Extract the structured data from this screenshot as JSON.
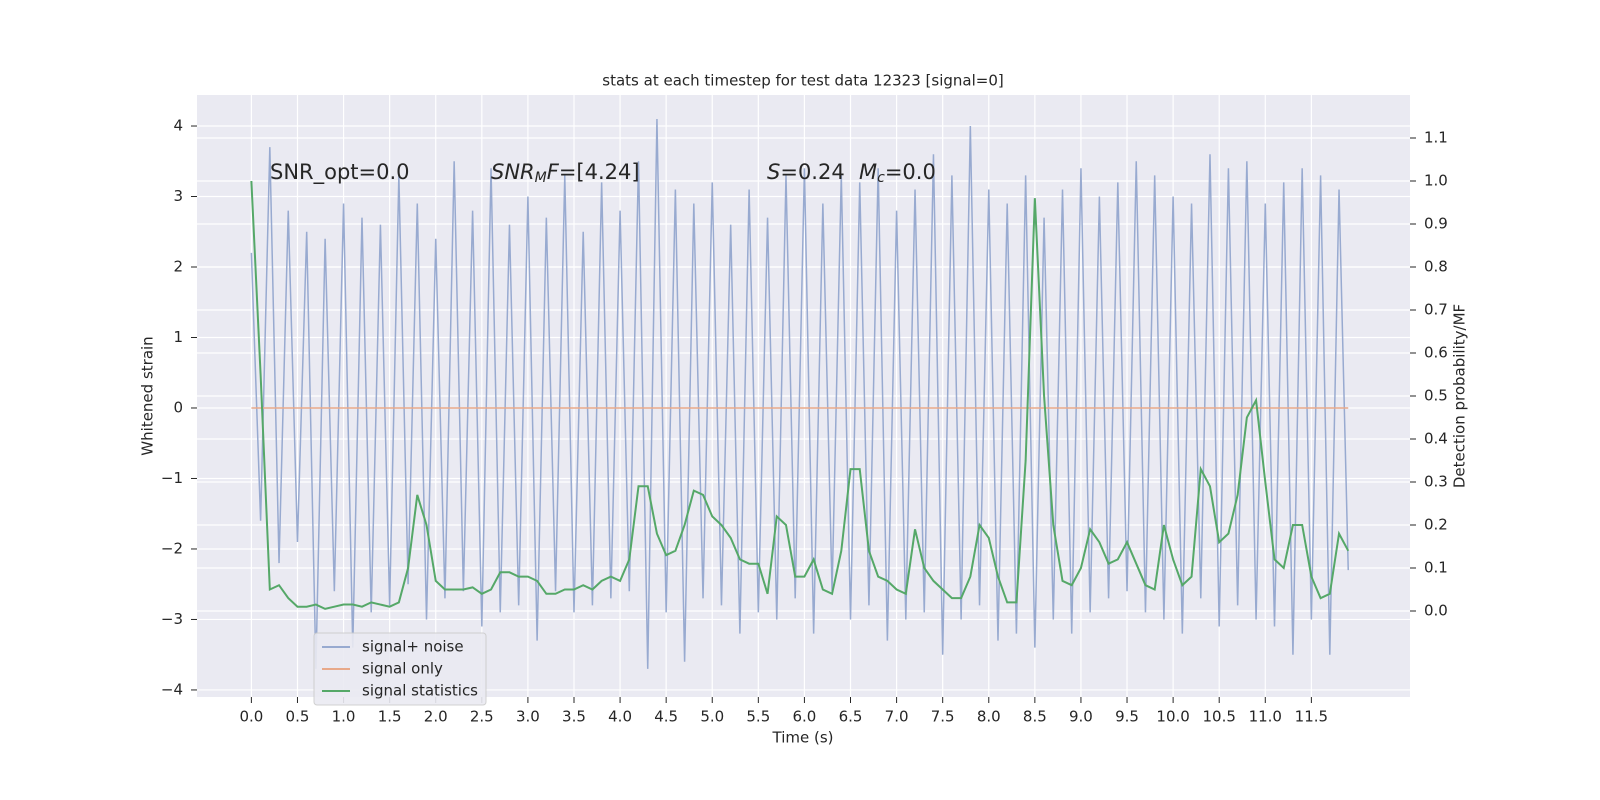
{
  "chart_data": {
    "type": "line",
    "title": "stats at each timestep for test data 12323 [signal=0]",
    "xlabel": "Time (s)",
    "ylabel": "Whitened strain",
    "y2label": "Detection probability/MF",
    "grid": true,
    "background": "#eaeaf2",
    "legend_loc": "lower left",
    "xlim": [
      -0.59,
      12.57
    ],
    "ylim": [
      -4.1,
      4.44
    ],
    "y2lim": [
      -0.2,
      1.2
    ],
    "xticks": [
      {
        "value": 0,
        "label": "0.0"
      },
      0.5,
      {
        "value": 1,
        "label": "1.0"
      },
      1.5,
      {
        "value": 2,
        "label": "2.0"
      },
      2.5,
      {
        "value": 3,
        "label": "3.0"
      },
      3.5,
      {
        "value": 4,
        "label": "4.0"
      },
      4.5,
      {
        "value": 5,
        "label": "5.0"
      },
      5.5,
      {
        "value": 6,
        "label": "6.0"
      },
      6.5,
      {
        "value": 7,
        "label": "7.0"
      },
      7.5,
      {
        "value": 8,
        "label": "8.0"
      },
      8.5,
      {
        "value": 9,
        "label": "9.0"
      },
      9.5,
      {
        "value": 10,
        "label": "10.0"
      },
      10.5,
      {
        "value": 11,
        "label": "11.0"
      },
      11.5
    ],
    "yticks": [
      {
        "value": -4,
        "label": "−4"
      },
      {
        "value": -3,
        "label": "−3"
      },
      {
        "value": -2,
        "label": "−2"
      },
      {
        "value": -1,
        "label": "−1"
      },
      0,
      1,
      2,
      3,
      4
    ],
    "y2ticks": [
      {
        "value": 0,
        "label": "0.0"
      },
      0.1,
      0.2,
      0.3,
      0.4,
      0.5,
      0.6,
      0.7,
      0.8,
      0.9,
      {
        "value": 1,
        "label": "1.0"
      },
      1.1
    ],
    "annotations": [
      [
        {
          "text": "SNR_opt=0.0"
        }
      ],
      [
        {
          "text": "SNR",
          "italic": true
        },
        {
          "text": "M",
          "italic": true,
          "sub": true
        },
        {
          "text": "F",
          "italic": true
        },
        {
          "text": "=[4.24]"
        }
      ],
      [
        {
          "text": "S",
          "italic": true
        },
        {
          "text": "=0.24"
        }
      ],
      [
        {
          "text": "M",
          "italic": true
        },
        {
          "text": "c",
          "italic": true,
          "sub": true
        },
        {
          "text": "=0.0"
        }
      ]
    ],
    "x": [
      0.0,
      0.1,
      0.2,
      0.3,
      0.4,
      0.5,
      0.6,
      0.7,
      0.8,
      0.9,
      1.0,
      1.1,
      1.2,
      1.3,
      1.4,
      1.5,
      1.6,
      1.7,
      1.8,
      1.9,
      2.0,
      2.1,
      2.2,
      2.3,
      2.4,
      2.5,
      2.6,
      2.7,
      2.8,
      2.9,
      3.0,
      3.1,
      3.2,
      3.3,
      3.4,
      3.5,
      3.6,
      3.7,
      3.8,
      3.9,
      4.0,
      4.1,
      4.2,
      4.3,
      4.4,
      4.5,
      4.6,
      4.7,
      4.8,
      4.9,
      5.0,
      5.1,
      5.2,
      5.3,
      5.4,
      5.5,
      5.6,
      5.7,
      5.8,
      5.9,
      6.0,
      6.1,
      6.2,
      6.3,
      6.4,
      6.5,
      6.6,
      6.7,
      6.8,
      6.9,
      7.0,
      7.1,
      7.2,
      7.3,
      7.4,
      7.5,
      7.6,
      7.7,
      7.8,
      7.9,
      8.0,
      8.1,
      8.2,
      8.3,
      8.4,
      8.5,
      8.6,
      8.7,
      8.8,
      8.9,
      9.0,
      9.1,
      9.2,
      9.3,
      9.4,
      9.5,
      9.6,
      9.7,
      9.8,
      9.9,
      10.0,
      10.1,
      10.2,
      10.3,
      10.4,
      10.5,
      10.6,
      10.7,
      10.8,
      10.9,
      11.0,
      11.1,
      11.2,
      11.3,
      11.4,
      11.5,
      11.6,
      11.7,
      11.8,
      11.9
    ],
    "series": [
      {
        "name": "signal+ noise",
        "color": "#98aad0",
        "axis": "y",
        "values": [
          2.2,
          -1.6,
          3.7,
          -2.2,
          2.8,
          -1.9,
          2.5,
          -3.7,
          2.4,
          -2.6,
          2.9,
          -3.4,
          2.7,
          -2.9,
          2.6,
          -2.8,
          3.3,
          -2.5,
          2.9,
          -3.0,
          2.4,
          -2.7,
          3.5,
          -2.6,
          2.8,
          -3.1,
          3.4,
          -2.9,
          2.6,
          -2.8,
          3.0,
          -3.3,
          2.7,
          -2.6,
          3.3,
          -2.9,
          2.5,
          -2.8,
          3.2,
          -2.7,
          2.8,
          -2.6,
          3.5,
          -3.7,
          4.1,
          -2.9,
          3.1,
          -3.6,
          2.9,
          -2.7,
          3.2,
          -2.8,
          2.6,
          -3.2,
          3.1,
          -2.9,
          2.7,
          -3.0,
          3.3,
          -2.7,
          3.4,
          -3.2,
          2.9,
          -2.6,
          3.3,
          -3.0,
          3.2,
          -2.8,
          3.4,
          -3.3,
          2.8,
          -3.0,
          3.1,
          -2.9,
          3.6,
          -3.5,
          3.3,
          -3.0,
          4.0,
          -2.8,
          3.1,
          -3.3,
          2.9,
          -3.2,
          3.3,
          -3.4,
          2.7,
          -3.0,
          3.1,
          -3.2,
          3.4,
          -2.9,
          3.0,
          -2.7,
          3.2,
          -2.6,
          3.5,
          -2.9,
          3.3,
          -3.0,
          3.0,
          -3.2,
          2.9,
          -2.7,
          3.6,
          -3.1,
          3.4,
          -2.8,
          3.5,
          -3.0,
          2.9,
          -3.1,
          3.2,
          -3.5,
          3.4,
          -3.0,
          3.3,
          -3.5,
          3.1,
          -2.3
        ]
      },
      {
        "name": "signal only",
        "color": "#e8a98a",
        "axis": "y",
        "values": [
          0,
          0,
          0,
          0,
          0,
          0,
          0,
          0,
          0,
          0,
          0,
          0,
          0,
          0,
          0,
          0,
          0,
          0,
          0,
          0,
          0,
          0,
          0,
          0,
          0,
          0,
          0,
          0,
          0,
          0,
          0,
          0,
          0,
          0,
          0,
          0,
          0,
          0,
          0,
          0,
          0,
          0,
          0,
          0,
          0,
          0,
          0,
          0,
          0,
          0,
          0,
          0,
          0,
          0,
          0,
          0,
          0,
          0,
          0,
          0,
          0,
          0,
          0,
          0,
          0,
          0,
          0,
          0,
          0,
          0,
          0,
          0,
          0,
          0,
          0,
          0,
          0,
          0,
          0,
          0,
          0,
          0,
          0,
          0,
          0,
          0,
          0,
          0,
          0,
          0,
          0,
          0,
          0,
          0,
          0,
          0,
          0,
          0,
          0,
          0,
          0,
          0,
          0,
          0,
          0,
          0,
          0,
          0,
          0,
          0,
          0,
          0,
          0,
          0,
          0,
          0,
          0,
          0,
          0,
          0
        ]
      },
      {
        "name": "signal statistics",
        "color": "#55a868",
        "axis": "y2",
        "values": [
          1.0,
          0.55,
          0.05,
          0.06,
          0.03,
          0.01,
          0.01,
          0.015,
          0.005,
          0.01,
          0.015,
          0.015,
          0.01,
          0.02,
          0.015,
          0.01,
          0.02,
          0.1,
          0.27,
          0.2,
          0.07,
          0.05,
          0.05,
          0.05,
          0.055,
          0.04,
          0.05,
          0.09,
          0.09,
          0.08,
          0.08,
          0.07,
          0.04,
          0.04,
          0.05,
          0.05,
          0.06,
          0.05,
          0.07,
          0.08,
          0.07,
          0.12,
          0.29,
          0.29,
          0.18,
          0.13,
          0.14,
          0.2,
          0.28,
          0.27,
          0.22,
          0.2,
          0.17,
          0.12,
          0.11,
          0.11,
          0.04,
          0.22,
          0.2,
          0.08,
          0.08,
          0.12,
          0.05,
          0.04,
          0.14,
          0.33,
          0.33,
          0.14,
          0.08,
          0.07,
          0.05,
          0.04,
          0.19,
          0.1,
          0.07,
          0.05,
          0.03,
          0.03,
          0.08,
          0.2,
          0.17,
          0.08,
          0.02,
          0.02,
          0.35,
          0.96,
          0.5,
          0.2,
          0.07,
          0.06,
          0.1,
          0.19,
          0.16,
          0.11,
          0.12,
          0.16,
          0.11,
          0.06,
          0.05,
          0.2,
          0.12,
          0.06,
          0.08,
          0.33,
          0.29,
          0.16,
          0.18,
          0.27,
          0.45,
          0.49,
          0.3,
          0.12,
          0.1,
          0.2,
          0.2,
          0.08,
          0.03,
          0.04,
          0.18,
          0.14
        ]
      }
    ]
  }
}
